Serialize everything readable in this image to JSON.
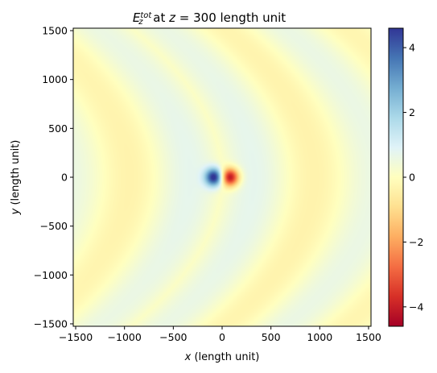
{
  "chart_data": {
    "type": "heatmap",
    "title": {
      "symbol": "E",
      "subscript": "z",
      "superscript": "tot",
      "mid_text": " at ",
      "z_symbol": "z",
      "rest": " = 300 length unit"
    },
    "xlabel": {
      "symbol": "x",
      "text": " (length unit)"
    },
    "ylabel": {
      "symbol": "y",
      "text": " (length unit)"
    },
    "xlim": [
      -1525,
      1525
    ],
    "ylim": [
      -1525,
      1525
    ],
    "x_ticks": [
      {
        "value": -1500,
        "label": "−1500"
      },
      {
        "value": -1000,
        "label": "−1000"
      },
      {
        "value": -500,
        "label": "−500"
      },
      {
        "value": 0,
        "label": "0"
      },
      {
        "value": 500,
        "label": "500"
      },
      {
        "value": 1000,
        "label": "1000"
      },
      {
        "value": 1500,
        "label": "1500"
      }
    ],
    "y_ticks": [
      {
        "value": 1500,
        "label": "1500"
      },
      {
        "value": 1000,
        "label": "1000"
      },
      {
        "value": 500,
        "label": "500"
      },
      {
        "value": 0,
        "label": "0"
      },
      {
        "value": -500,
        "label": "−500"
      },
      {
        "value": -1000,
        "label": "−1000"
      },
      {
        "value": -1500,
        "label": "−1500"
      }
    ],
    "colormap": "RdYlBu",
    "colorbar": {
      "vmin": -4.6,
      "vmax": 4.6,
      "ticks": [
        {
          "value": 4,
          "label": "4"
        },
        {
          "value": 2,
          "label": "2"
        },
        {
          "value": 0,
          "label": "0"
        },
        {
          "value": -2,
          "label": "−2"
        },
        {
          "value": -4,
          "label": "−4"
        }
      ]
    },
    "features": {
      "dipole": {
        "negative_center_x": -80,
        "positive_center_x": 80,
        "center_y": 0,
        "peak_value": 4.6,
        "size": 65
      },
      "background": {
        "base": 0.15,
        "band_amplitude": 0.6,
        "band_period": 1250,
        "curvature": 0.0004
      }
    },
    "colormap_stops": [
      [
        "#a50026",
        -1.0
      ],
      [
        "#d73027",
        -0.8
      ],
      [
        "#f46d43",
        -0.6
      ],
      [
        "#fdae61",
        -0.4
      ],
      [
        "#fee090",
        -0.2
      ],
      [
        "#ffffbf",
        0.0
      ],
      [
        "#e0f3f8",
        0.2
      ],
      [
        "#abd9e9",
        0.4
      ],
      [
        "#74add1",
        0.6
      ],
      [
        "#4575b4",
        0.8
      ],
      [
        "#313695",
        1.0
      ]
    ]
  }
}
